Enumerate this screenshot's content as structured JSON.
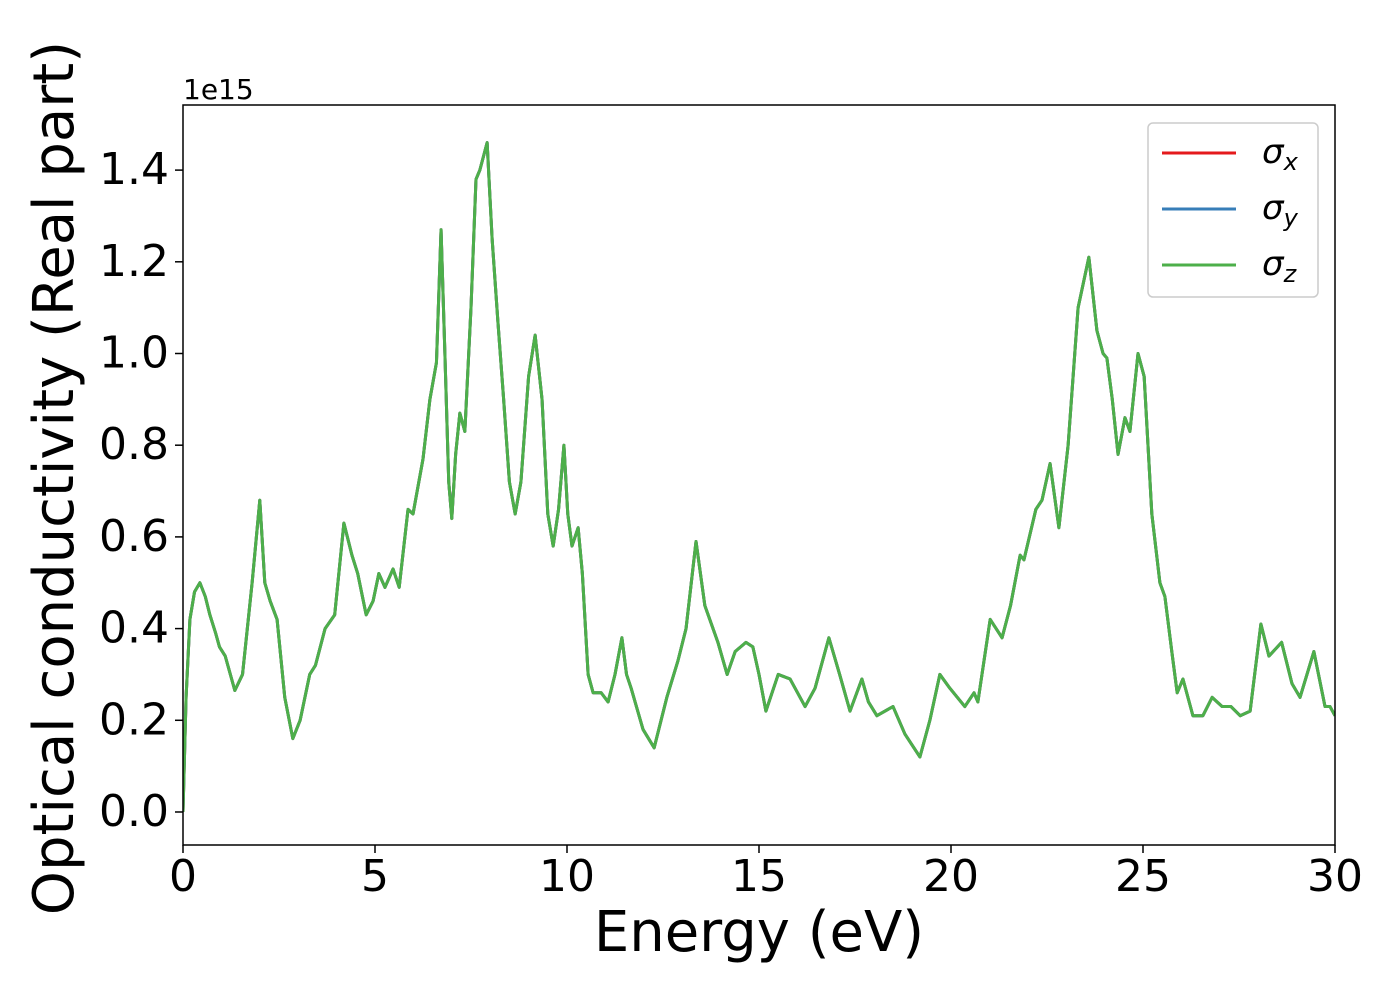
{
  "chart_data": {
    "type": "line",
    "y_offset_label": "1e15",
    "xlabel": "Energy (eV)",
    "ylabel": "Optical conductivity (Real part)",
    "x": [
      0,
      0.08,
      0.18,
      0.3,
      0.44,
      0.58,
      0.7,
      0.85,
      0.95,
      1.1,
      1.2,
      1.35,
      1.55,
      1.8,
      2.0,
      2.13,
      2.27,
      2.45,
      2.65,
      2.86,
      3.05,
      3.3,
      3.45,
      3.7,
      3.95,
      4.19,
      4.4,
      4.55,
      4.77,
      4.95,
      5.1,
      5.26,
      5.47,
      5.63,
      5.86,
      5.99,
      6.25,
      6.43,
      6.6,
      6.72,
      6.82,
      6.92,
      7.0,
      7.1,
      7.21,
      7.34,
      7.5,
      7.63,
      7.73,
      7.92,
      8.05,
      8.2,
      8.35,
      8.5,
      8.65,
      8.8,
      9.0,
      9.17,
      9.35,
      9.5,
      9.64,
      9.78,
      9.92,
      10.02,
      10.13,
      10.29,
      10.4,
      10.55,
      10.68,
      10.89,
      11.07,
      11.25,
      11.43,
      11.55,
      11.67,
      11.98,
      12.27,
      12.6,
      12.89,
      13.1,
      13.36,
      13.59,
      13.93,
      14.17,
      14.38,
      14.66,
      14.84,
      15.0,
      15.18,
      15.5,
      15.81,
      16.2,
      16.46,
      16.82,
      17.1,
      17.37,
      17.68,
      17.85,
      18.07,
      18.49,
      18.8,
      19.19,
      19.45,
      19.71,
      19.97,
      20.36,
      20.6,
      20.7,
      21.02,
      21.33,
      21.55,
      21.8,
      21.9,
      22.21,
      22.37,
      22.58,
      22.81,
      23.05,
      23.31,
      23.59,
      23.8,
      23.96,
      24.06,
      24.2,
      24.35,
      24.53,
      24.66,
      24.87,
      25.03,
      25.23,
      25.44,
      25.57,
      25.75,
      25.89,
      26.04,
      26.3,
      26.56,
      26.8,
      27.06,
      27.29,
      27.53,
      27.79,
      28.07,
      28.28,
      28.61,
      28.88,
      29.09,
      29.45,
      29.74,
      29.87,
      30
    ],
    "series": [
      {
        "name": "σx",
        "color": "#e41a1c",
        "values": [
          0,
          0.25,
          0.42,
          0.48,
          0.5,
          0.47,
          0.43,
          0.39,
          0.36,
          0.34,
          0.31,
          0.265,
          0.3,
          0.5,
          0.68,
          0.5,
          0.46,
          0.42,
          0.25,
          0.16,
          0.2,
          0.3,
          0.32,
          0.4,
          0.43,
          0.63,
          0.56,
          0.52,
          0.43,
          0.46,
          0.52,
          0.49,
          0.53,
          0.49,
          0.66,
          0.65,
          0.77,
          0.9,
          0.98,
          1.27,
          1.0,
          0.72,
          0.64,
          0.78,
          0.87,
          0.83,
          1.1,
          1.38,
          1.4,
          1.46,
          1.25,
          1.07,
          0.9,
          0.72,
          0.65,
          0.72,
          0.95,
          1.04,
          0.9,
          0.65,
          0.58,
          0.66,
          0.8,
          0.65,
          0.58,
          0.62,
          0.52,
          0.3,
          0.26,
          0.26,
          0.24,
          0.3,
          0.38,
          0.3,
          0.27,
          0.18,
          0.14,
          0.25,
          0.33,
          0.4,
          0.59,
          0.45,
          0.37,
          0.3,
          0.35,
          0.37,
          0.36,
          0.3,
          0.22,
          0.3,
          0.29,
          0.23,
          0.27,
          0.38,
          0.3,
          0.22,
          0.29,
          0.24,
          0.21,
          0.23,
          0.17,
          0.12,
          0.2,
          0.3,
          0.27,
          0.23,
          0.26,
          0.24,
          0.42,
          0.38,
          0.45,
          0.56,
          0.55,
          0.66,
          0.68,
          0.76,
          0.62,
          0.8,
          1.1,
          1.21,
          1.05,
          1.0,
          0.99,
          0.9,
          0.78,
          0.86,
          0.83,
          1.0,
          0.95,
          0.65,
          0.5,
          0.47,
          0.35,
          0.26,
          0.29,
          0.21,
          0.21,
          0.25,
          0.23,
          0.23,
          0.21,
          0.22,
          0.41,
          0.34,
          0.37,
          0.28,
          0.25,
          0.35,
          0.23,
          0.23,
          0.21
        ]
      },
      {
        "name": "σy",
        "color": "#377eb8",
        "values": [
          0,
          0.25,
          0.42,
          0.48,
          0.5,
          0.47,
          0.43,
          0.39,
          0.36,
          0.34,
          0.31,
          0.265,
          0.3,
          0.5,
          0.68,
          0.5,
          0.46,
          0.42,
          0.25,
          0.16,
          0.2,
          0.3,
          0.32,
          0.4,
          0.43,
          0.63,
          0.56,
          0.52,
          0.43,
          0.46,
          0.52,
          0.49,
          0.53,
          0.49,
          0.66,
          0.65,
          0.77,
          0.9,
          0.98,
          1.27,
          1.0,
          0.72,
          0.64,
          0.78,
          0.87,
          0.83,
          1.1,
          1.38,
          1.4,
          1.46,
          1.25,
          1.07,
          0.9,
          0.72,
          0.65,
          0.72,
          0.95,
          1.04,
          0.9,
          0.65,
          0.58,
          0.66,
          0.8,
          0.65,
          0.58,
          0.62,
          0.52,
          0.3,
          0.26,
          0.26,
          0.24,
          0.3,
          0.38,
          0.3,
          0.27,
          0.18,
          0.14,
          0.25,
          0.33,
          0.4,
          0.59,
          0.45,
          0.37,
          0.3,
          0.35,
          0.37,
          0.36,
          0.3,
          0.22,
          0.3,
          0.29,
          0.23,
          0.27,
          0.38,
          0.3,
          0.22,
          0.29,
          0.24,
          0.21,
          0.23,
          0.17,
          0.12,
          0.2,
          0.3,
          0.27,
          0.23,
          0.26,
          0.24,
          0.42,
          0.38,
          0.45,
          0.56,
          0.55,
          0.66,
          0.68,
          0.76,
          0.62,
          0.8,
          1.1,
          1.21,
          1.05,
          1.0,
          0.99,
          0.9,
          0.78,
          0.86,
          0.83,
          1.0,
          0.95,
          0.65,
          0.5,
          0.47,
          0.35,
          0.26,
          0.29,
          0.21,
          0.21,
          0.25,
          0.23,
          0.23,
          0.21,
          0.22,
          0.41,
          0.34,
          0.37,
          0.28,
          0.25,
          0.35,
          0.23,
          0.23,
          0.21
        ]
      },
      {
        "name": "σz",
        "color": "#4daf4a",
        "values": [
          0,
          0.25,
          0.42,
          0.48,
          0.5,
          0.47,
          0.43,
          0.39,
          0.36,
          0.34,
          0.31,
          0.265,
          0.3,
          0.5,
          0.68,
          0.5,
          0.46,
          0.42,
          0.25,
          0.16,
          0.2,
          0.3,
          0.32,
          0.4,
          0.43,
          0.63,
          0.56,
          0.52,
          0.43,
          0.46,
          0.52,
          0.49,
          0.53,
          0.49,
          0.66,
          0.65,
          0.77,
          0.9,
          0.98,
          1.27,
          1.0,
          0.72,
          0.64,
          0.78,
          0.87,
          0.83,
          1.1,
          1.38,
          1.4,
          1.46,
          1.25,
          1.07,
          0.9,
          0.72,
          0.65,
          0.72,
          0.95,
          1.04,
          0.9,
          0.65,
          0.58,
          0.66,
          0.8,
          0.65,
          0.58,
          0.62,
          0.52,
          0.3,
          0.26,
          0.26,
          0.24,
          0.3,
          0.38,
          0.3,
          0.27,
          0.18,
          0.14,
          0.25,
          0.33,
          0.4,
          0.59,
          0.45,
          0.37,
          0.3,
          0.35,
          0.37,
          0.36,
          0.3,
          0.22,
          0.3,
          0.29,
          0.23,
          0.27,
          0.38,
          0.3,
          0.22,
          0.29,
          0.24,
          0.21,
          0.23,
          0.17,
          0.12,
          0.2,
          0.3,
          0.27,
          0.23,
          0.26,
          0.24,
          0.42,
          0.38,
          0.45,
          0.56,
          0.55,
          0.66,
          0.68,
          0.76,
          0.62,
          0.8,
          1.1,
          1.21,
          1.05,
          1.0,
          0.99,
          0.9,
          0.78,
          0.86,
          0.83,
          1.0,
          0.95,
          0.65,
          0.5,
          0.47,
          0.35,
          0.26,
          0.29,
          0.21,
          0.21,
          0.25,
          0.23,
          0.23,
          0.21,
          0.22,
          0.41,
          0.34,
          0.37,
          0.28,
          0.25,
          0.35,
          0.23,
          0.23,
          0.21
        ]
      }
    ],
    "xlim": [
      0,
      30
    ],
    "xticks": [
      0,
      5,
      10,
      15,
      20,
      25,
      30
    ],
    "ylim": [
      -0.072,
      1.542
    ],
    "yticks": [
      {
        "value": 0,
        "label": "0.0"
      },
      {
        "value": 0.2,
        "label": "0.2"
      },
      {
        "value": 0.4,
        "label": "0.4"
      },
      {
        "value": 0.6,
        "label": "0.6"
      },
      {
        "value": 0.8,
        "label": "0.8"
      },
      {
        "value": 1.0,
        "label": "1.0"
      },
      {
        "value": 1.2,
        "label": "1.2"
      },
      {
        "value": 1.4,
        "label": "1.4"
      }
    ],
    "grid": false,
    "legend": "upper right"
  }
}
